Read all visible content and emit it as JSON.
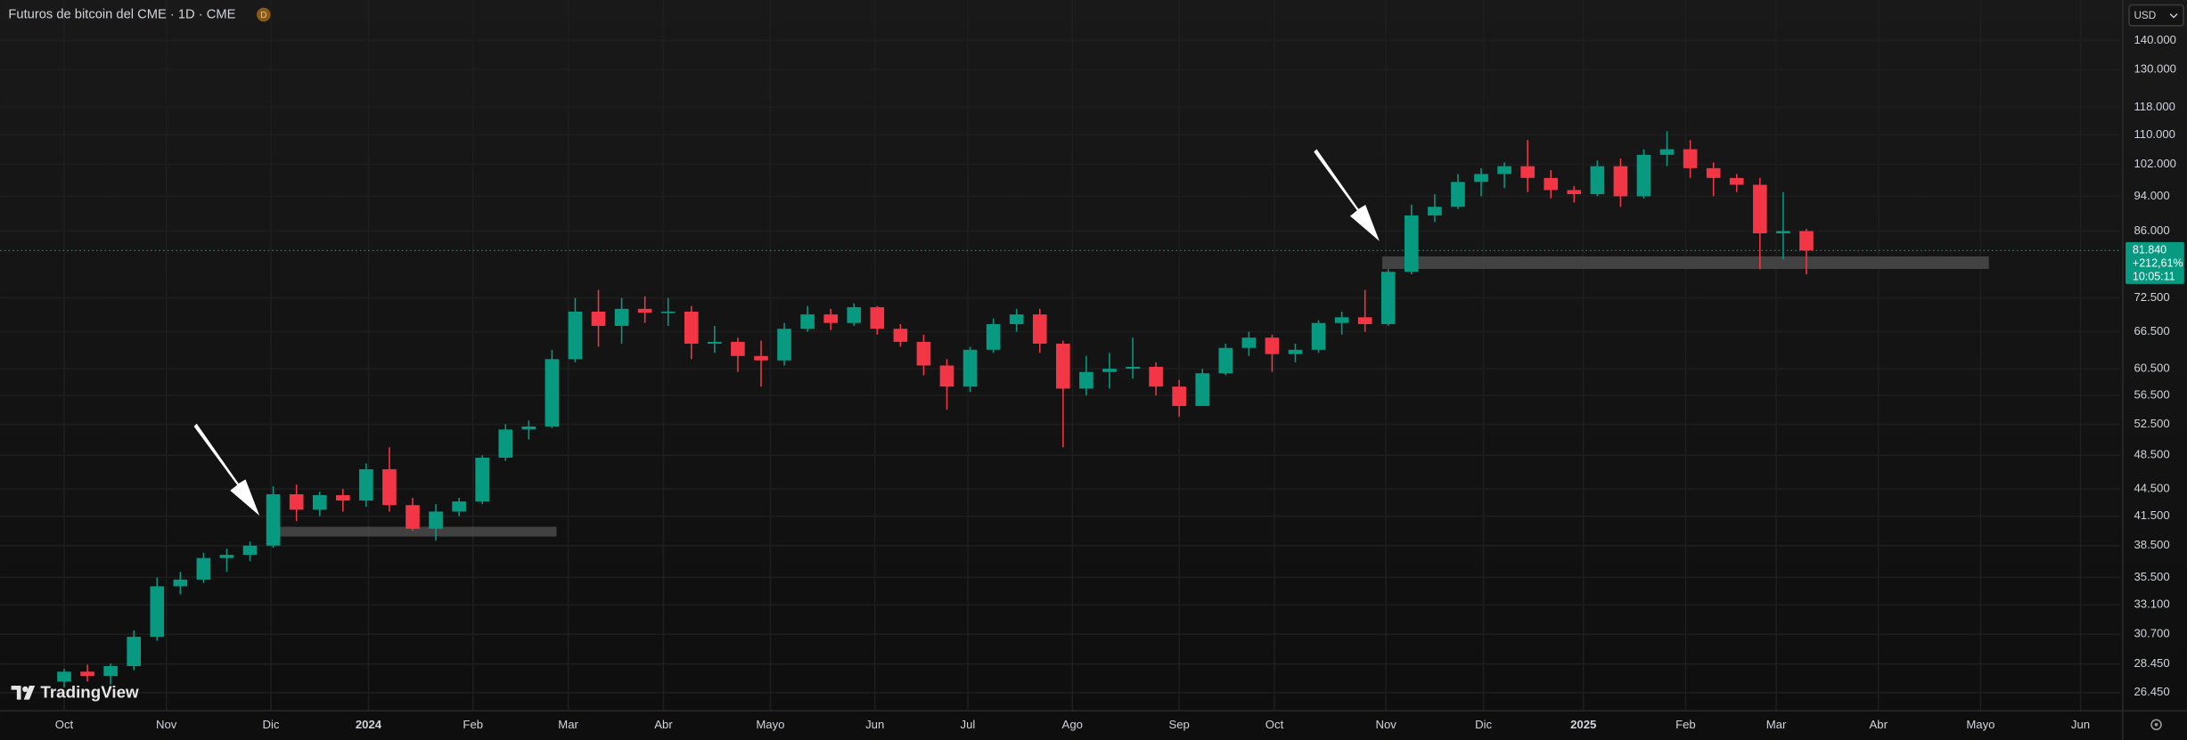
{
  "header": {
    "title": "Futuros de bitcoin del CME · 1D · CME",
    "badge": "D",
    "currency": "USD",
    "logo": "TradingView"
  },
  "chart_data": {
    "type": "candlestick",
    "log_scale": true,
    "grid": true,
    "up_color": "#089981",
    "down_color": "#f23645",
    "open": [
      27200,
      27900,
      27600,
      28300,
      30500,
      34700,
      35300,
      37300,
      37600,
      38500,
      43900,
      42200,
      43800,
      43200,
      46800,
      42700,
      40200,
      42000,
      43100,
      48200,
      51800,
      52200,
      62000,
      70000,
      67500,
      70500,
      69800,
      70000,
      64500,
      64800,
      62500,
      61800,
      67000,
      69500,
      68000,
      70800,
      67000,
      64800,
      61000,
      57800,
      63500,
      67800,
      69500,
      64500,
      57500,
      60000,
      60500,
      60800,
      57800,
      55000,
      59800,
      63800,
      65500,
      62800,
      63500,
      68000,
      69000,
      67800,
      77500,
      89500,
      91500,
      97500,
      99500,
      101500,
      98500,
      95500,
      94500,
      101500,
      94000,
      104500,
      106000,
      101000,
      98500,
      96800,
      85500,
      86000
    ],
    "high": [
      28100,
      28400,
      28500,
      31000,
      35500,
      36000,
      37800,
      38200,
      38900,
      44800,
      45000,
      44200,
      44500,
      47500,
      49500,
      43500,
      42800,
      43500,
      48500,
      52500,
      53000,
      63500,
      72500,
      74000,
      72500,
      72800,
      72500,
      71000,
      67500,
      65500,
      65000,
      68000,
      71000,
      70500,
      71500,
      71000,
      67800,
      66000,
      62000,
      64000,
      68800,
      70500,
      70500,
      65000,
      62500,
      63000,
      65500,
      61500,
      58800,
      60500,
      64500,
      66500,
      66000,
      64500,
      68500,
      70000,
      74000,
      78000,
      92000,
      94500,
      99500,
      101000,
      102500,
      108500,
      100500,
      96500,
      103000,
      103500,
      106000,
      111000,
      108500,
      102500,
      99500,
      98500,
      95000,
      86500
    ],
    "low": [
      26800,
      27200,
      27000,
      28000,
      30200,
      34000,
      35000,
      36000,
      37000,
      38300,
      41000,
      41500,
      42000,
      42500,
      42000,
      40000,
      39000,
      41500,
      42800,
      47800,
      50500,
      52000,
      61500,
      64000,
      64500,
      68000,
      67500,
      62000,
      63000,
      60000,
      57800,
      61000,
      66500,
      66800,
      67500,
      66000,
      64000,
      59500,
      54500,
      57000,
      63000,
      66500,
      63000,
      49500,
      56500,
      57500,
      59000,
      56500,
      53500,
      55000,
      59500,
      62500,
      60000,
      61500,
      63000,
      66000,
      66500,
      67500,
      77000,
      88000,
      91000,
      94000,
      96000,
      95000,
      93500,
      92500,
      94000,
      91500,
      93500,
      101500,
      98500,
      94000,
      95000,
      78000,
      80000,
      77000
    ],
    "close": [
      27900,
      27600,
      28300,
      30500,
      34700,
      35300,
      37300,
      37600,
      38500,
      43900,
      42200,
      43800,
      43200,
      46800,
      42700,
      40200,
      42000,
      43100,
      48200,
      51800,
      52200,
      62000,
      70000,
      67500,
      70500,
      69800,
      70000,
      64500,
      64800,
      62500,
      61800,
      67000,
      69500,
      68000,
      70800,
      67000,
      64800,
      61000,
      57800,
      63500,
      67800,
      69500,
      64500,
      57500,
      60000,
      60500,
      60800,
      57800,
      55000,
      59800,
      63800,
      65500,
      62800,
      63500,
      68000,
      69000,
      67800,
      77500,
      89500,
      91500,
      97500,
      99500,
      101500,
      98500,
      95500,
      94500,
      101500,
      94000,
      104500,
      106000,
      101000,
      98500,
      96800,
      85500,
      86000,
      81840
    ],
    "last_price": {
      "value": 81840,
      "label": "81.840"
    },
    "change_label": "+212,61%",
    "countdown": "10:05:11",
    "xlim": [
      -2.76,
      88.5
    ],
    "xticks": [
      {
        "value": 0,
        "label": "Oct"
      },
      {
        "value": 4.4,
        "label": "Nov"
      },
      {
        "value": 8.9,
        "label": "Dic"
      },
      {
        "value": 13.1,
        "label": "2024"
      },
      {
        "value": 17.6,
        "label": "Feb"
      },
      {
        "value": 21.7,
        "label": "Mar"
      },
      {
        "value": 25.8,
        "label": "Abr"
      },
      {
        "value": 30.4,
        "label": "Mayo"
      },
      {
        "value": 34.9,
        "label": "Jun"
      },
      {
        "value": 38.9,
        "label": "Jul"
      },
      {
        "value": 43.4,
        "label": "Ago"
      },
      {
        "value": 48.0,
        "label": "Sep"
      },
      {
        "value": 52.1,
        "label": "Oct"
      },
      {
        "value": 56.9,
        "label": "Nov"
      },
      {
        "value": 61.1,
        "label": "Dic"
      },
      {
        "value": 65.4,
        "label": "2025"
      },
      {
        "value": 69.8,
        "label": "Feb"
      },
      {
        "value": 73.7,
        "label": "Mar"
      },
      {
        "value": 78.1,
        "label": "Abr"
      },
      {
        "value": 82.5,
        "label": "Mayo"
      },
      {
        "value": 86.8,
        "label": "Jun"
      }
    ],
    "ylim": [
      25250,
      155200
    ],
    "yticks": [
      {
        "value": 26450,
        "label": "26.450"
      },
      {
        "value": 28450,
        "label": "28.450"
      },
      {
        "value": 30700,
        "label": "30.700"
      },
      {
        "value": 33100,
        "label": "33.100"
      },
      {
        "value": 35500,
        "label": "35.500"
      },
      {
        "value": 38500,
        "label": "38.500"
      },
      {
        "value": 41500,
        "label": "41.500"
      },
      {
        "value": 44500,
        "label": "44.500"
      },
      {
        "value": 48500,
        "label": "48.500"
      },
      {
        "value": 52500,
        "label": "52.500"
      },
      {
        "value": 56500,
        "label": "56.500"
      },
      {
        "value": 60500,
        "label": "60.500"
      },
      {
        "value": 66500,
        "label": "66.500"
      },
      {
        "value": 72500,
        "label": "72.500"
      },
      {
        "value": 86000,
        "label": "86.000"
      },
      {
        "value": 94000,
        "label": "94.000"
      },
      {
        "value": 102000,
        "label": "102.000"
      },
      {
        "value": 110000,
        "label": "110.000"
      },
      {
        "value": 118000,
        "label": "118.000"
      },
      {
        "value": 130000,
        "label": "130.000"
      },
      {
        "value": 140000,
        "label": "140.000"
      }
    ]
  }
}
